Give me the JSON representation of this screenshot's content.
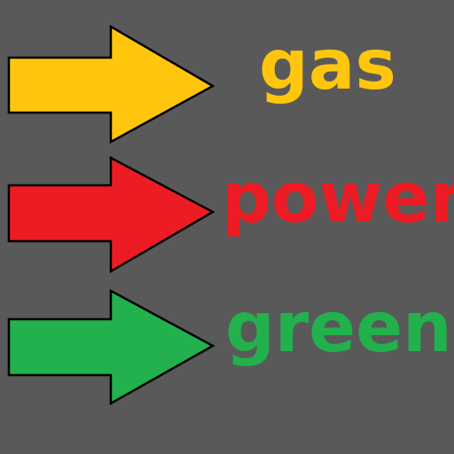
{
  "rows": [
    {
      "label": "gas",
      "color": "#FFC60D",
      "icon": "yellow-arrow-right-icon"
    },
    {
      "label": "power",
      "color": "#ED1C24",
      "icon": "red-arrow-right-icon"
    },
    {
      "label": "green",
      "color": "#22B14C",
      "icon": "green-arrow-right-icon"
    }
  ],
  "colors": {
    "background": "#595959",
    "outline": "#000000"
  }
}
